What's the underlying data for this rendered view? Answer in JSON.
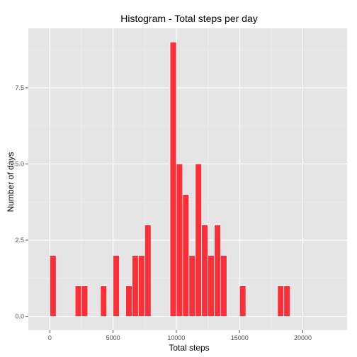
{
  "chart_data": {
    "type": "bar",
    "title": "Histogram - Total steps per day",
    "xlabel": "Total steps",
    "ylabel": "Number of days",
    "xlim": [
      -1700,
      23500
    ],
    "ylim": [
      -0.45,
      9.45
    ],
    "x_ticks": [
      0,
      5000,
      10000,
      15000,
      20000
    ],
    "x_tick_labels": [
      "0",
      "5000",
      "10000",
      "15000",
      "20000"
    ],
    "y_ticks": [
      0,
      2.5,
      5,
      7.5
    ],
    "y_tick_labels": [
      "0.0",
      "2.5",
      "5.0",
      "7.5"
    ],
    "bin_width": 500,
    "bins": [
      {
        "start": 0,
        "end": 500,
        "count": 2
      },
      {
        "start": 2000,
        "end": 2500,
        "count": 1
      },
      {
        "start": 2500,
        "end": 3000,
        "count": 1
      },
      {
        "start": 4000,
        "end": 4500,
        "count": 1
      },
      {
        "start": 5000,
        "end": 5500,
        "count": 2
      },
      {
        "start": 6000,
        "end": 6500,
        "count": 1
      },
      {
        "start": 6500,
        "end": 7000,
        "count": 2
      },
      {
        "start": 7000,
        "end": 7500,
        "count": 2
      },
      {
        "start": 7500,
        "end": 8000,
        "count": 3
      },
      {
        "start": 9500,
        "end": 10000,
        "count": 9
      },
      {
        "start": 10000,
        "end": 10500,
        "count": 5
      },
      {
        "start": 10500,
        "end": 11000,
        "count": 4
      },
      {
        "start": 11000,
        "end": 11500,
        "count": 2
      },
      {
        "start": 11500,
        "end": 12000,
        "count": 5
      },
      {
        "start": 12000,
        "end": 12500,
        "count": 3
      },
      {
        "start": 12500,
        "end": 13000,
        "count": 2
      },
      {
        "start": 13000,
        "end": 13500,
        "count": 3
      },
      {
        "start": 13500,
        "end": 14000,
        "count": 2
      },
      {
        "start": 15000,
        "end": 15500,
        "count": 1
      },
      {
        "start": 18000,
        "end": 18500,
        "count": 1
      },
      {
        "start": 18500,
        "end": 19000,
        "count": 1
      }
    ],
    "grid": true,
    "colors": {
      "bar_fill": "#fb2f37",
      "bar_stroke": "#ffffff",
      "panel_background": "#e5e5e5",
      "grid_major": "#ffffff",
      "grid_minor": "#f2f2f2"
    }
  }
}
